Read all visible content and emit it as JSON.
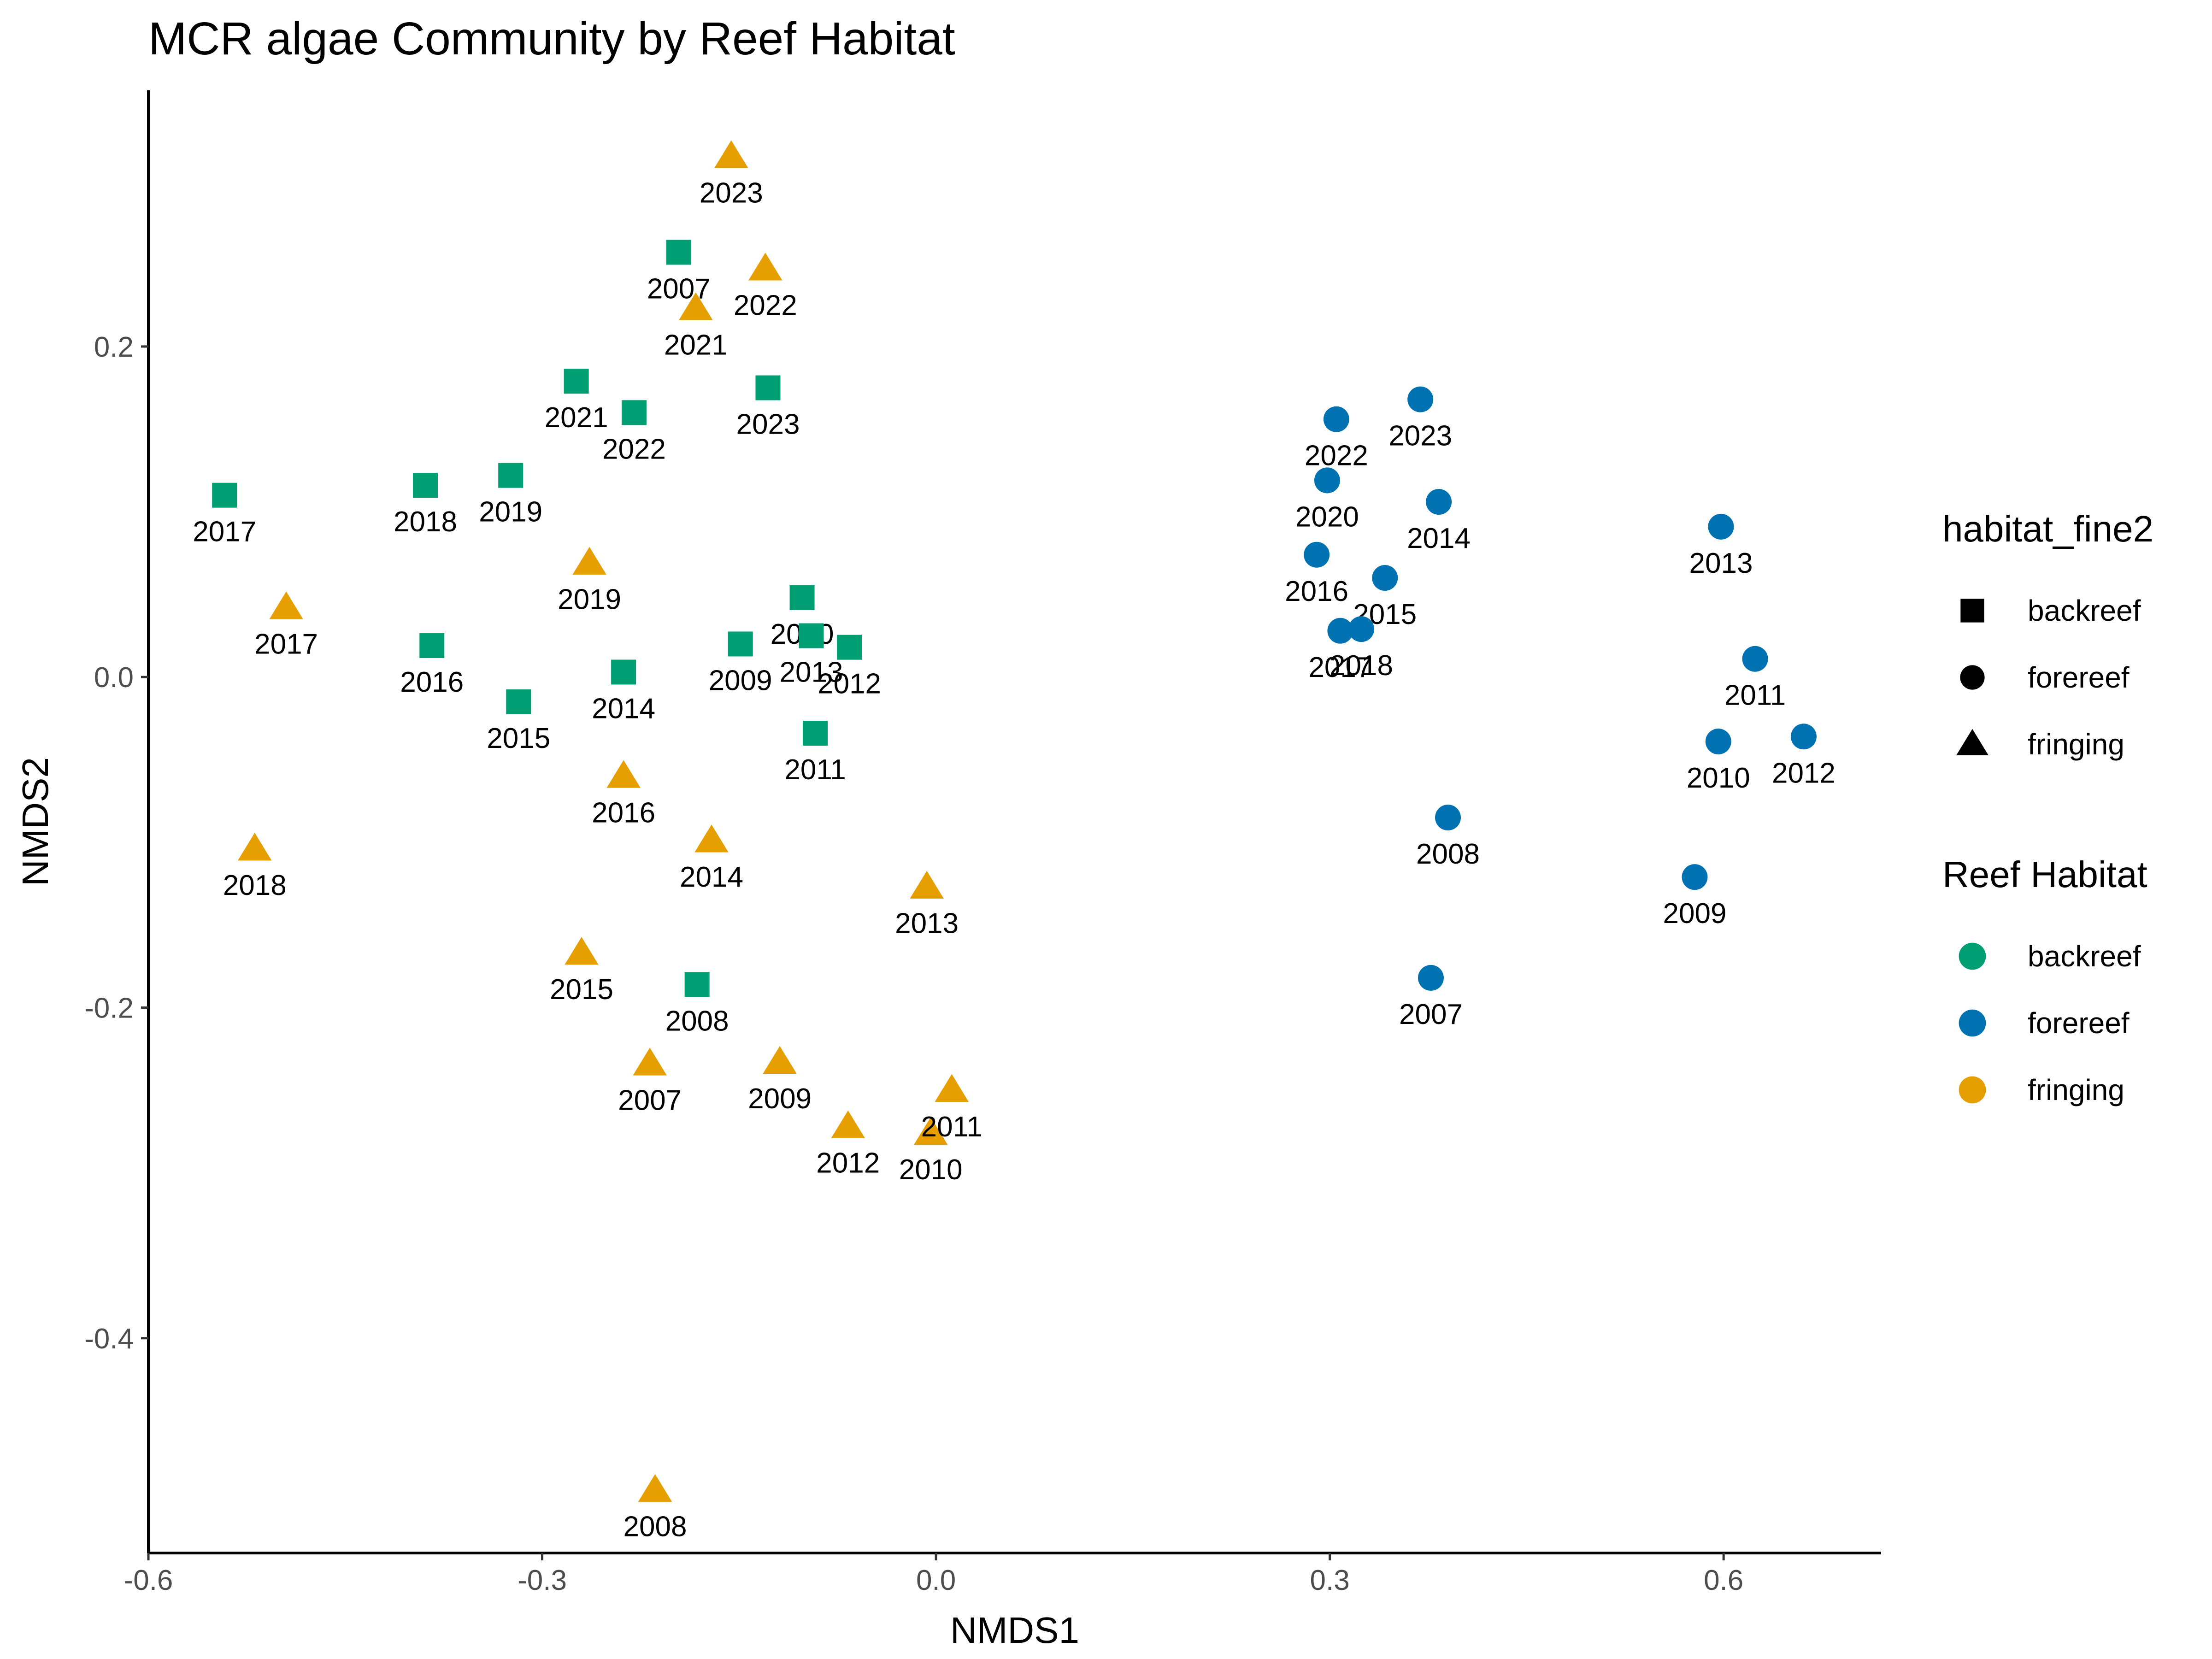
{
  "chart_data": {
    "type": "scatter",
    "title": "MCR algae Community by Reef Habitat",
    "xlabel": "NMDS1",
    "ylabel": "NMDS2",
    "xlim": [
      -0.6,
      0.72
    ],
    "ylim": [
      -0.53,
      0.355
    ],
    "x_ticks": [
      -0.6,
      -0.3,
      0.0,
      0.3,
      0.6
    ],
    "y_ticks": [
      -0.4,
      -0.2,
      0.0,
      0.2
    ],
    "x_tick_labels": [
      "-0.6",
      "-0.3",
      "0.0",
      "0.3",
      "0.6"
    ],
    "y_tick_labels": [
      "-0.4",
      "-0.2",
      "0.0",
      "0.2"
    ],
    "grid": false,
    "legend_position": "right",
    "colors": {
      "backreef": "#009E73",
      "forereef": "#0072B2",
      "fringing": "#E69F00"
    },
    "shapes": {
      "backreef": "square",
      "forereef": "circle",
      "fringing": "triangle"
    },
    "legends": [
      {
        "title": "habitat_fine2",
        "kind": "shape",
        "items": [
          "backreef",
          "forereef",
          "fringing"
        ]
      },
      {
        "title": "Reef Habitat",
        "kind": "color",
        "items": [
          "backreef",
          "forereef",
          "fringing"
        ]
      }
    ],
    "series": [
      {
        "name": "backreef",
        "points": [
          {
            "label": "2007",
            "x": -0.196,
            "y": 0.257
          },
          {
            "label": "2008",
            "x": -0.182,
            "y": -0.186
          },
          {
            "label": "2009",
            "x": -0.149,
            "y": 0.02
          },
          {
            "label": "2010",
            "x": -0.102,
            "y": 0.048
          },
          {
            "label": "2011",
            "x": -0.092,
            "y": -0.034
          },
          {
            "label": "2012",
            "x": -0.066,
            "y": 0.018
          },
          {
            "label": "2013",
            "x": -0.095,
            "y": 0.025
          },
          {
            "label": "2014",
            "x": -0.238,
            "y": 0.003
          },
          {
            "label": "2015",
            "x": -0.318,
            "y": -0.015
          },
          {
            "label": "2016",
            "x": -0.384,
            "y": 0.019
          },
          {
            "label": "2017",
            "x": -0.542,
            "y": 0.11
          },
          {
            "label": "2018",
            "x": -0.389,
            "y": 0.116
          },
          {
            "label": "2019",
            "x": -0.324,
            "y": 0.122
          },
          {
            "label": "2021",
            "x": -0.274,
            "y": 0.179
          },
          {
            "label": "2022",
            "x": -0.23,
            "y": 0.16
          },
          {
            "label": "2023",
            "x": -0.128,
            "y": 0.175
          }
        ]
      },
      {
        "name": "forereef",
        "points": [
          {
            "label": "2007",
            "x": 0.377,
            "y": -0.182
          },
          {
            "label": "2008",
            "x": 0.39,
            "y": -0.085
          },
          {
            "label": "2009",
            "x": 0.578,
            "y": -0.121
          },
          {
            "label": "2010",
            "x": 0.596,
            "y": -0.039
          },
          {
            "label": "2011",
            "x": 0.624,
            "y": 0.011
          },
          {
            "label": "2012",
            "x": 0.661,
            "y": -0.036
          },
          {
            "label": "2013",
            "x": 0.598,
            "y": 0.091
          },
          {
            "label": "2014",
            "x": 0.383,
            "y": 0.106
          },
          {
            "label": "2015",
            "x": 0.342,
            "y": 0.06
          },
          {
            "label": "2016",
            "x": 0.29,
            "y": 0.074
          },
          {
            "label": "2017",
            "x": 0.308,
            "y": 0.028
          },
          {
            "label": "2018",
            "x": 0.324,
            "y": 0.029
          },
          {
            "label": "2020",
            "x": 0.298,
            "y": 0.119
          },
          {
            "label": "2022",
            "x": 0.305,
            "y": 0.156
          },
          {
            "label": "2023",
            "x": 0.369,
            "y": 0.168
          }
        ]
      },
      {
        "name": "fringing",
        "points": [
          {
            "label": "2007",
            "x": -0.218,
            "y": -0.234
          },
          {
            "label": "2008",
            "x": -0.214,
            "y": -0.492
          },
          {
            "label": "2009",
            "x": -0.119,
            "y": -0.233
          },
          {
            "label": "2010",
            "x": -0.004,
            "y": -0.276
          },
          {
            "label": "2011",
            "x": 0.012,
            "y": -0.25
          },
          {
            "label": "2012",
            "x": -0.067,
            "y": -0.272
          },
          {
            "label": "2013",
            "x": -0.007,
            "y": -0.127
          },
          {
            "label": "2014",
            "x": -0.171,
            "y": -0.099
          },
          {
            "label": "2015",
            "x": -0.27,
            "y": -0.167
          },
          {
            "label": "2016",
            "x": -0.238,
            "y": -0.06
          },
          {
            "label": "2017",
            "x": -0.495,
            "y": 0.042
          },
          {
            "label": "2018",
            "x": -0.519,
            "y": -0.104
          },
          {
            "label": "2019",
            "x": -0.264,
            "y": 0.069
          },
          {
            "label": "2021",
            "x": -0.183,
            "y": 0.223
          },
          {
            "label": "2022",
            "x": -0.13,
            "y": 0.247
          },
          {
            "label": "2023",
            "x": -0.156,
            "y": 0.315
          }
        ]
      }
    ]
  }
}
